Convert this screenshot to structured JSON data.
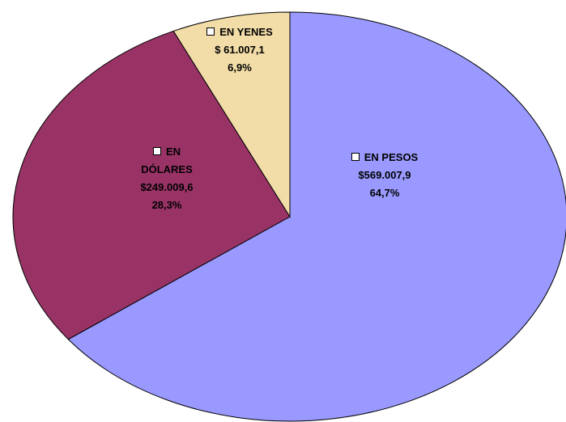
{
  "chart_data": {
    "type": "pie",
    "categories": [
      "EN PESOS",
      "EN DÓLARES",
      "EN YENES"
    ],
    "values": [
      64.7,
      28.3,
      6.9
    ],
    "value_labels": [
      "64,7%",
      "28,3%",
      "6,9%"
    ],
    "amounts": [
      "$569.007,9",
      "$249.009,6",
      "$ 61.007,1"
    ],
    "colors": [
      "#9999ff",
      "#993366",
      "#f2dca8"
    ]
  }
}
